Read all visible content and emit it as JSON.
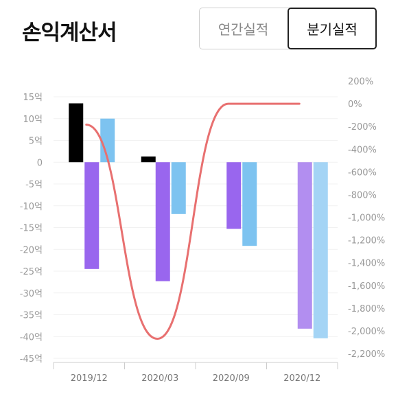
{
  "header": {
    "title": "손익계산서",
    "tabs": [
      {
        "label": "연간실적",
        "selected": false
      },
      {
        "label": "분기실적",
        "selected": true
      }
    ]
  },
  "chart_data": {
    "type": "bar",
    "categories": [
      "2019/12",
      "2020/03",
      "2020/09",
      "2020/12"
    ],
    "y_left": {
      "range": [
        -45,
        15
      ],
      "ticks": [
        15,
        10,
        5,
        0,
        -5,
        -10,
        -15,
        -20,
        -25,
        -30,
        -35,
        -40,
        -45
      ],
      "tick_labels": [
        "15억",
        "10억",
        "5억",
        "0",
        "-5억",
        "-10억",
        "-15억",
        "-20억",
        "-25억",
        "-30억",
        "-35억",
        "-40억",
        "-45억"
      ]
    },
    "y_right": {
      "range": [
        -2200,
        200
      ],
      "ticks": [
        200,
        0,
        -200,
        -400,
        -600,
        -800,
        -1000,
        -1200,
        -1400,
        -1600,
        -1800,
        -2000,
        -2200
      ],
      "tick_labels": [
        "200%",
        "0%",
        "-200%",
        "-400%",
        "-600%",
        "-800%",
        "-1,000%",
        "-1,200%",
        "-1,400%",
        "-1,600%",
        "-1,800%",
        "-2,000%",
        "-2,200%"
      ]
    },
    "series": [
      {
        "axis": "left",
        "color": "#000000",
        "values": [
          13.5,
          1.3,
          null,
          null
        ]
      },
      {
        "axis": "left",
        "color": "#9966ee",
        "values": [
          -24.5,
          -27.3,
          -15.3,
          -38.2
        ]
      },
      {
        "axis": "left",
        "color": "#7dc3f0",
        "values": [
          10.0,
          -11.9,
          -19.2,
          -40.4
        ]
      },
      {
        "axis": "right",
        "type": "line",
        "color": "#e87070",
        "values": [
          -185,
          -2070,
          0,
          0
        ]
      }
    ],
    "grid": true,
    "legend": "none"
  }
}
